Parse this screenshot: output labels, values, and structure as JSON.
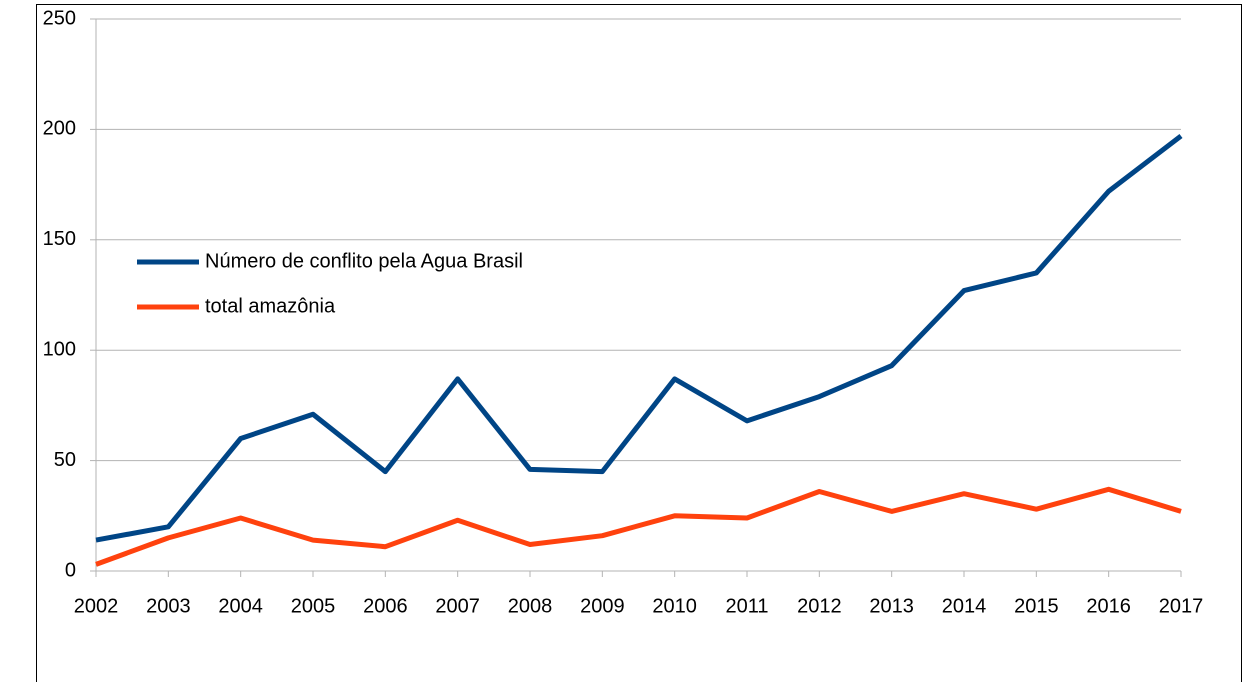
{
  "chart_data": {
    "type": "line",
    "categories": [
      "2002",
      "2003",
      "2004",
      "2005",
      "2006",
      "2007",
      "2008",
      "2009",
      "2010",
      "2011",
      "2012",
      "2013",
      "2014",
      "2015",
      "2016",
      "2017"
    ],
    "series": [
      {
        "name": "Número de conflito pela Agua Brasil",
        "color": "#004586",
        "values": [
          14,
          20,
          60,
          71,
          45,
          87,
          46,
          45,
          87,
          68,
          79,
          93,
          127,
          135,
          172,
          197
        ]
      },
      {
        "name": "total amazônia",
        "color": "#ff420e",
        "values": [
          3,
          15,
          24,
          14,
          11,
          23,
          12,
          16,
          25,
          24,
          36,
          27,
          35,
          28,
          37,
          27
        ]
      }
    ],
    "ylim": [
      0,
      250
    ],
    "yticks": [
      0,
      50,
      100,
      150,
      200,
      250
    ],
    "grid": true,
    "legend": "left"
  }
}
